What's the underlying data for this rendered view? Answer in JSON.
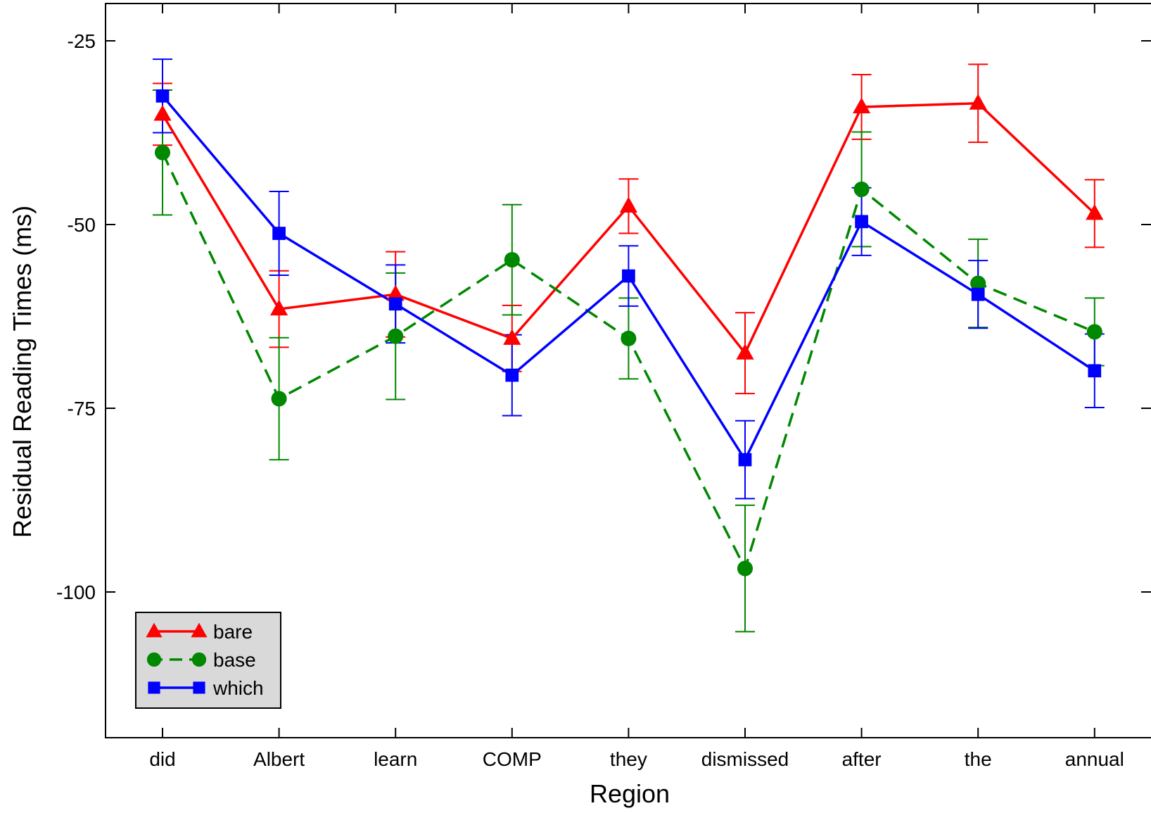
{
  "chart_data": {
    "type": "line",
    "xlabel": "Region",
    "ylabel": "Residual Reading Times (ms)",
    "categories": [
      "did",
      "Albert",
      "learn",
      "COMP",
      "they",
      "dismissed",
      "after",
      "the",
      "annual"
    ],
    "yticks": [
      -25,
      -50,
      -75,
      -100
    ],
    "ylim": [
      -120,
      -20
    ],
    "grid": false,
    "legend_position": "bottom-left",
    "series": [
      {
        "name": "bare",
        "color": "#ff0000",
        "line_style": "solid",
        "marker": "triangle",
        "values": [
          -35,
          -61.5,
          -59.5,
          -65.5,
          -47.5,
          -67.5,
          -34,
          -33.5,
          -48.5
        ],
        "errors": [
          4.2,
          5.2,
          5.8,
          4.5,
          3.7,
          5.5,
          4.4,
          5.3,
          4.6
        ]
      },
      {
        "name": "base",
        "color": "#008800",
        "line_style": "dashed",
        "marker": "circle",
        "values": [
          -40.2,
          -73.7,
          -65.2,
          -54.8,
          -65.5,
          -96.8,
          -45.2,
          -58,
          -64.6
        ],
        "errors": [
          8.5,
          8.3,
          8.6,
          7.5,
          5.5,
          8.6,
          7.8,
          6,
          4.6
        ]
      },
      {
        "name": "which",
        "color": "#0000ff",
        "line_style": "solid",
        "marker": "square",
        "values": [
          -32.5,
          -51.2,
          -60.8,
          -70.5,
          -57,
          -82,
          -49.6,
          -59.5,
          -69.9
        ],
        "errors": [
          5,
          5.7,
          5.3,
          5.5,
          4.1,
          5.3,
          4.6,
          4.6,
          5
        ]
      }
    ]
  }
}
